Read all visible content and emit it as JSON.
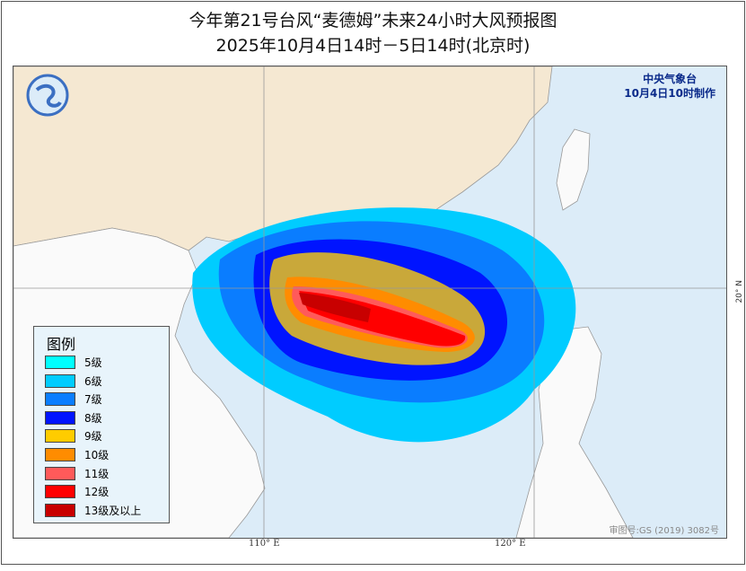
{
  "title_line1": "今年第21号台风“麦德姆”未来24小时大风预报图",
  "title_line2": "2025年10月4日14时－5日14时(北京时)",
  "agency": {
    "name": "中央气象台",
    "issued": "10月4日10时制作"
  },
  "legend": {
    "title": "图例",
    "items": [
      {
        "label": "5级",
        "color": "#00ffff"
      },
      {
        "label": "6级",
        "color": "#00ccff"
      },
      {
        "label": "7级",
        "color": "#0a7dff"
      },
      {
        "label": "8级",
        "color": "#0014ff"
      },
      {
        "label": "9级",
        "color": "#ffcc00"
      },
      {
        "label": "10级",
        "color": "#ff8c00"
      },
      {
        "label": "11级",
        "color": "#ff5a5a"
      },
      {
        "label": "12级",
        "color": "#ff0000"
      },
      {
        "label": "13级及以上",
        "color": "#c80000"
      }
    ]
  },
  "axes": {
    "lon_ticks": [
      "110° E",
      "120° E"
    ],
    "lat_ticks": [
      "20° N"
    ]
  },
  "approval_number": "审图号:GS (2019) 3082号"
}
